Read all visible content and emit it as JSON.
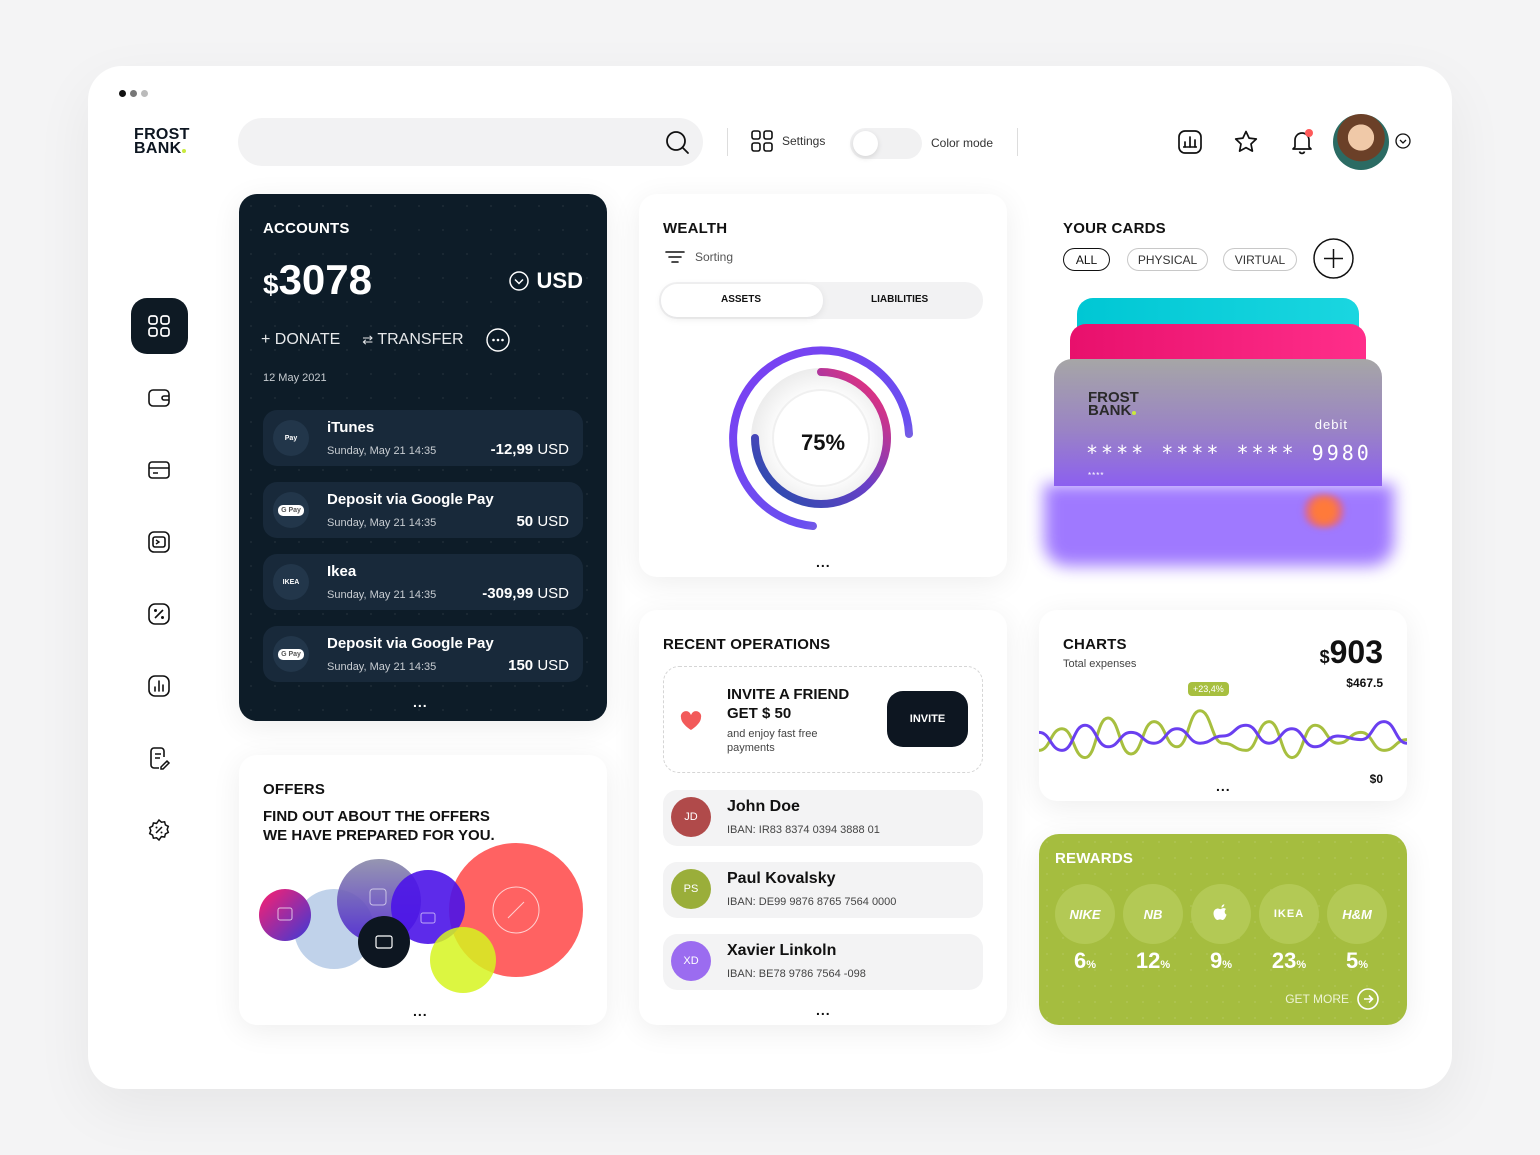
{
  "app": {
    "logo_line1": "FROST",
    "logo_line2": "BANK"
  },
  "header": {
    "settings_label": "Settings",
    "color_mode_label": "Color mode",
    "search_placeholder": ""
  },
  "colors": {
    "accent_dark": "#0d1c28",
    "lime": "#a5bd3f",
    "purple": "#7b3ff2",
    "pink": "#ff2e6d",
    "cyan": "#00c7d4"
  },
  "accounts": {
    "title": "ACCOUNTS",
    "amount_symbol": "$",
    "amount": "3078",
    "currency": "USD",
    "donate_label": "DONATE",
    "transfer_label": "TRANSFER",
    "date": "12 May 2021",
    "transactions": [
      {
        "icon": "Pay",
        "name": "iTunes",
        "date": "Sunday, May 21 14:35",
        "amount": "-12,99",
        "currency": "USD"
      },
      {
        "icon": "G Pay",
        "name": "Deposit via Google Pay",
        "date": "Sunday, May 21 14:35",
        "amount": "50",
        "currency": "USD"
      },
      {
        "icon": "IKEA",
        "name": "Ikea",
        "date": "Sunday, May 21 14:35",
        "amount": "-309,99",
        "currency": "USD"
      },
      {
        "icon": "G Pay",
        "name": "Deposit via Google Pay",
        "date": "Sunday, May 21 14:35",
        "amount": "150",
        "currency": "USD"
      }
    ],
    "more": "..."
  },
  "wealth": {
    "title": "WEALTH",
    "sorting_label": "Sorting",
    "tab_assets": "ASSETS",
    "tab_liabilities": "LIABILITIES",
    "percent": "75%",
    "percent_value": 75,
    "more": "..."
  },
  "your_cards": {
    "title": "YOUR CARDS",
    "filters": [
      "ALL",
      "PHYSICAL",
      "VIRTUAL"
    ],
    "active_filter": "ALL",
    "card_logo_line1": "FROST",
    "card_logo_line2": "BANK",
    "card_type": "debit",
    "card_groups": [
      "****",
      "****",
      "****",
      "9980"
    ],
    "card_small": "****"
  },
  "recent_operations": {
    "title": "RECENT OPERATIONS",
    "invite_title_1": "INVITE A FRIEND",
    "invite_title_2": "GET $ 50",
    "invite_sub_1": "and enjoy fast free",
    "invite_sub_2": "payments",
    "invite_button": "INVITE",
    "contacts": [
      {
        "initials": "JD",
        "name": "John Doe",
        "iban": "IBAN: IR83 8374 0394 3888 01",
        "color": "#b04a4a"
      },
      {
        "initials": "PS",
        "name": "Paul Kovalsky",
        "iban": "IBAN: DE99 9876 8765 7564 0000",
        "color": "#9aae3a"
      },
      {
        "initials": "XD",
        "name": "Xavier Linkoln",
        "iban": "IBAN: BE78 9786 7564 -098",
        "color": "#9b6cf0"
      }
    ],
    "more": "..."
  },
  "offers": {
    "title": "OFFERS",
    "line1": "FIND OUT ABOUT THE OFFERS",
    "line2": "WE HAVE PREPARED FOR YOU.",
    "more": "..."
  },
  "charts": {
    "title": "CHARTS",
    "subtitle": "Total expenses",
    "currency": "$",
    "total": "903",
    "secondary": "$467.5",
    "badge": "+23,4%",
    "zero": "$0",
    "more": "..."
  },
  "chart_data": {
    "type": "line",
    "title": "CHARTS",
    "series": [
      {
        "values": [
          30,
          60,
          20,
          75,
          25,
          70,
          35,
          85,
          40,
          30,
          70,
          20,
          65,
          40,
          55,
          30,
          45
        ]
      },
      {
        "values": [
          55,
          30,
          65,
          35,
          55,
          40,
          60,
          40,
          50,
          65,
          40,
          60,
          35,
          50,
          45,
          70,
          40
        ]
      }
    ]
  },
  "rewards": {
    "title": "REWARDS",
    "brands": [
      {
        "name": "NIKE",
        "value": "6",
        "unit": "%"
      },
      {
        "name": "NB",
        "value": "12",
        "unit": "%"
      },
      {
        "name": "",
        "value": "9",
        "unit": "%"
      },
      {
        "name": "IKEA",
        "value": "23",
        "unit": "%"
      },
      {
        "name": "H&M",
        "value": "5",
        "unit": "%"
      }
    ],
    "get_more": "GET MORE"
  }
}
